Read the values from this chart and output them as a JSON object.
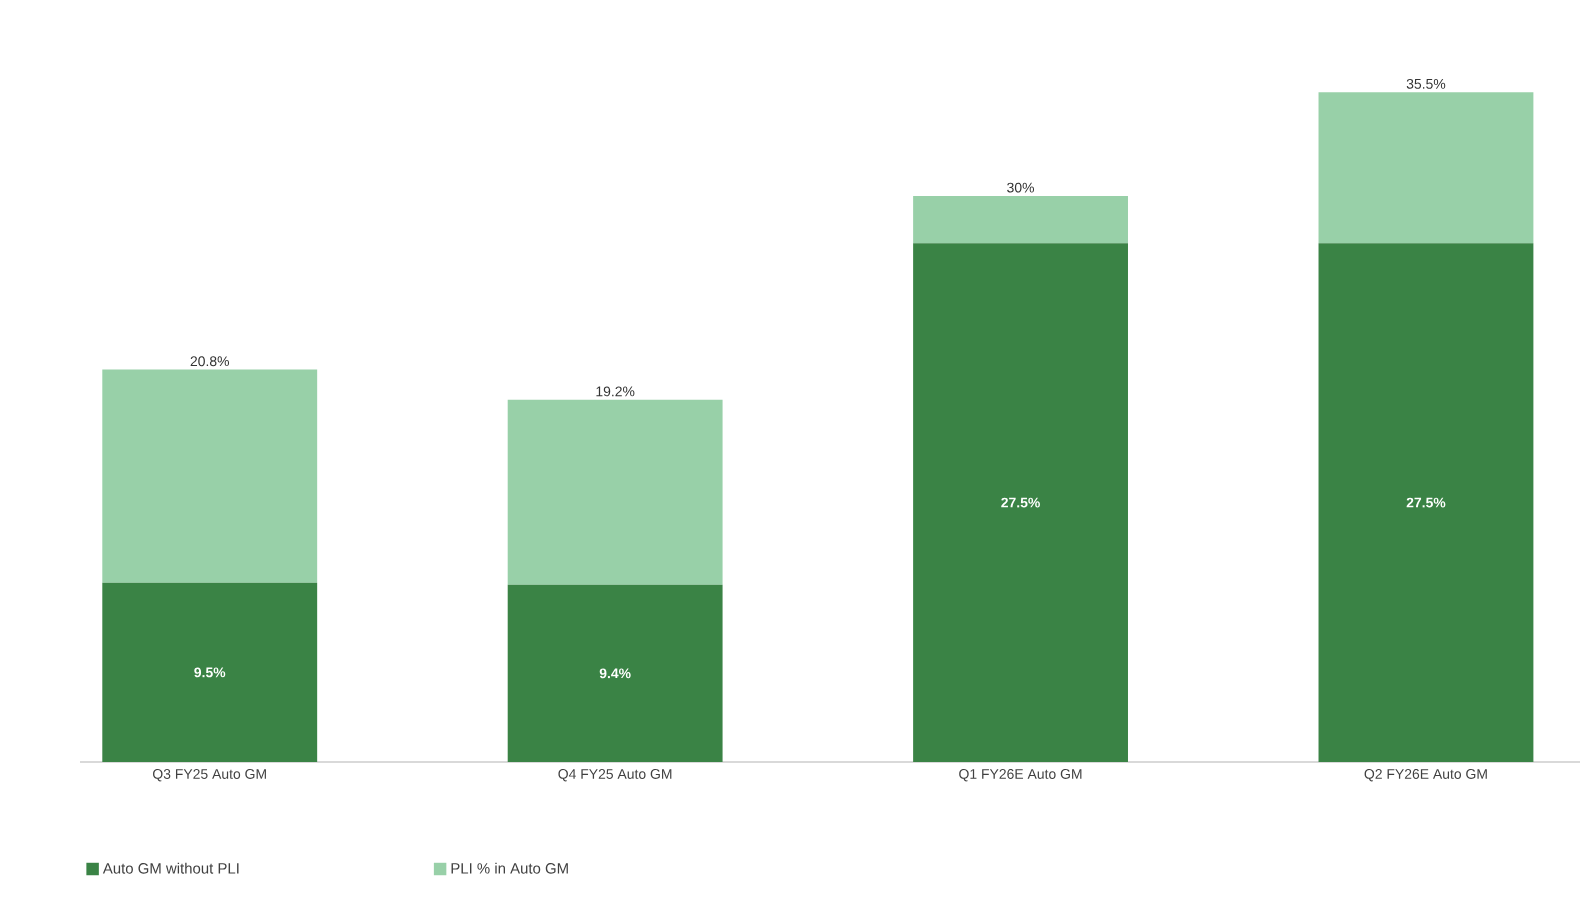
{
  "chart_data": {
    "type": "bar",
    "stacked": true,
    "legend": "bottom left",
    "categories": [
      "Q3 FY25 Auto GM",
      "Q4 FY25 Auto GM",
      "Q1 FY26E Auto GM",
      "Q2 FY26E Auto GM"
    ],
    "series": [
      {
        "name": "Auto GM without PLI",
        "color": "#3a8345",
        "values": [
          9.5,
          9.4,
          27.5,
          27.5
        ],
        "value_labels": [
          "9.5%",
          "9.4%",
          "27.5%",
          "27.5%"
        ]
      },
      {
        "name": "PLI % in Auto GM",
        "color": "#98d0a8",
        "values": [
          11.3,
          9.8,
          2.5,
          8.0
        ]
      }
    ],
    "totals": [
      "20.8%",
      "19.2%",
      "30%",
      "35.5%"
    ]
  }
}
